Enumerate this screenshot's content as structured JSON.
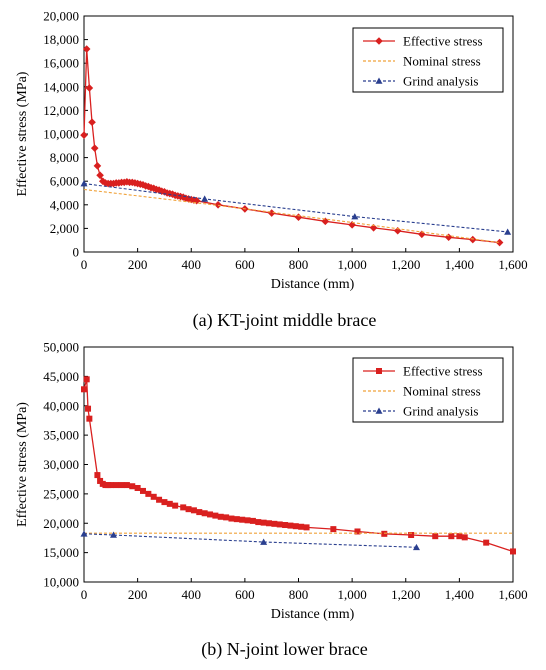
{
  "chart_data": [
    {
      "type": "line",
      "caption": "(a) KT-joint middle brace",
      "xlabel": "Distance (mm)",
      "ylabel": "Effective stress (MPa)",
      "xlim": [
        0,
        1600
      ],
      "ylim": [
        0,
        20000
      ],
      "xticks": [
        "0",
        "200",
        "400",
        "600",
        "800",
        "1,000",
        "1,200",
        "1,400",
        "1,600"
      ],
      "yticks": [
        "0",
        "2,000",
        "4,000",
        "6,000",
        "8,000",
        "10,000",
        "12,000",
        "14,000",
        "16,000",
        "18,000",
        "20,000"
      ],
      "grid": false,
      "legend_position": "top-right",
      "series": [
        {
          "name": "Effective stress",
          "color": "#d9201f",
          "marker": "diamond",
          "dash": "solid",
          "points": [
            [
              0,
              9900
            ],
            [
              10,
              17200
            ],
            [
              20,
              13900
            ],
            [
              30,
              11000
            ],
            [
              40,
              8800
            ],
            [
              50,
              7300
            ],
            [
              60,
              6500
            ],
            [
              70,
              6000
            ],
            [
              80,
              5850
            ],
            [
              90,
              5800
            ],
            [
              100,
              5800
            ],
            [
              110,
              5800
            ],
            [
              120,
              5850
            ],
            [
              130,
              5850
            ],
            [
              140,
              5900
            ],
            [
              150,
              5900
            ],
            [
              160,
              5950
            ],
            [
              170,
              5900
            ],
            [
              180,
              5900
            ],
            [
              190,
              5850
            ],
            [
              200,
              5800
            ],
            [
              210,
              5750
            ],
            [
              220,
              5700
            ],
            [
              230,
              5600
            ],
            [
              240,
              5550
            ],
            [
              250,
              5450
            ],
            [
              260,
              5400
            ],
            [
              270,
              5300
            ],
            [
              280,
              5250
            ],
            [
              290,
              5150
            ],
            [
              300,
              5100
            ],
            [
              310,
              5000
            ],
            [
              320,
              4950
            ],
            [
              330,
              4900
            ],
            [
              340,
              4800
            ],
            [
              350,
              4750
            ],
            [
              360,
              4700
            ],
            [
              370,
              4650
            ],
            [
              380,
              4550
            ],
            [
              390,
              4500
            ],
            [
              400,
              4450
            ],
            [
              410,
              4400
            ],
            [
              420,
              4350
            ],
            [
              500,
              4000
            ],
            [
              600,
              3650
            ],
            [
              700,
              3300
            ],
            [
              800,
              2950
            ],
            [
              900,
              2600
            ],
            [
              1000,
              2300
            ],
            [
              1080,
              2050
            ],
            [
              1170,
              1800
            ],
            [
              1260,
              1500
            ],
            [
              1360,
              1250
            ],
            [
              1450,
              1050
            ],
            [
              1550,
              800
            ]
          ]
        },
        {
          "name": "Nominal stress",
          "color": "#f0a23a",
          "marker": "none",
          "dash": "dashed",
          "points": [
            [
              0,
              5300
            ],
            [
              500,
              3950
            ],
            [
              1000,
              2500
            ],
            [
              1550,
              800
            ]
          ]
        },
        {
          "name": "Grind analysis",
          "color": "#2a3f8f",
          "marker": "triangle",
          "dash": "dashed",
          "points": [
            [
              0,
              5800
            ],
            [
              450,
              4500
            ],
            [
              1010,
              3000
            ],
            [
              1580,
              1700
            ]
          ]
        }
      ]
    },
    {
      "type": "line",
      "caption": "(b) N-joint lower brace",
      "xlabel": "Distance (mm)",
      "ylabel": "Effective stress (MPa)",
      "xlim": [
        0,
        1600
      ],
      "ylim": [
        10000,
        50000
      ],
      "xticks": [
        "0",
        "200",
        "400",
        "600",
        "800",
        "1,000",
        "1,200",
        "1,400",
        "1,600"
      ],
      "yticks": [
        "10,000",
        "15,000",
        "20,000",
        "25,000",
        "30,000",
        "35,000",
        "40,000",
        "45,000",
        "50,000"
      ],
      "grid": false,
      "legend_position": "top-right",
      "series": [
        {
          "name": "Effective stress",
          "color": "#d9201f",
          "marker": "square",
          "dash": "solid",
          "points": [
            [
              0,
              42800
            ],
            [
              10,
              44500
            ],
            [
              15,
              39500
            ],
            [
              20,
              37800
            ],
            [
              50,
              28200
            ],
            [
              60,
              27200
            ],
            [
              70,
              26700
            ],
            [
              80,
              26500
            ],
            [
              90,
              26500
            ],
            [
              100,
              26500
            ],
            [
              120,
              26500
            ],
            [
              140,
              26500
            ],
            [
              160,
              26500
            ],
            [
              180,
              26300
            ],
            [
              200,
              26000
            ],
            [
              220,
              25500
            ],
            [
              240,
              25000
            ],
            [
              260,
              24500
            ],
            [
              280,
              24000
            ],
            [
              300,
              23600
            ],
            [
              320,
              23300
            ],
            [
              340,
              23000
            ],
            [
              370,
              22700
            ],
            [
              390,
              22400
            ],
            [
              410,
              22200
            ],
            [
              430,
              21900
            ],
            [
              450,
              21700
            ],
            [
              470,
              21500
            ],
            [
              490,
              21300
            ],
            [
              510,
              21100
            ],
            [
              530,
              21000
            ],
            [
              550,
              20800
            ],
            [
              570,
              20700
            ],
            [
              590,
              20600
            ],
            [
              610,
              20500
            ],
            [
              630,
              20400
            ],
            [
              650,
              20200
            ],
            [
              670,
              20100
            ],
            [
              690,
              20000
            ],
            [
              710,
              19900
            ],
            [
              730,
              19800
            ],
            [
              750,
              19700
            ],
            [
              770,
              19600
            ],
            [
              790,
              19500
            ],
            [
              810,
              19400
            ],
            [
              830,
              19300
            ],
            [
              930,
              19000
            ],
            [
              1020,
              18600
            ],
            [
              1120,
              18200
            ],
            [
              1220,
              18000
            ],
            [
              1310,
              17800
            ],
            [
              1370,
              17800
            ],
            [
              1400,
              17800
            ],
            [
              1420,
              17600
            ],
            [
              1500,
              16700
            ],
            [
              1600,
              15200
            ]
          ]
        },
        {
          "name": "Nominal stress",
          "color": "#f0a23a",
          "marker": "none",
          "dash": "dashed",
          "points": [
            [
              0,
              18300
            ],
            [
              1600,
              18300
            ]
          ]
        },
        {
          "name": "Grind analysis",
          "color": "#2a3f8f",
          "marker": "triangle",
          "dash": "dashed",
          "points": [
            [
              0,
              18200
            ],
            [
              110,
              18000
            ],
            [
              670,
              16800
            ],
            [
              1240,
              15900
            ]
          ]
        }
      ]
    }
  ]
}
